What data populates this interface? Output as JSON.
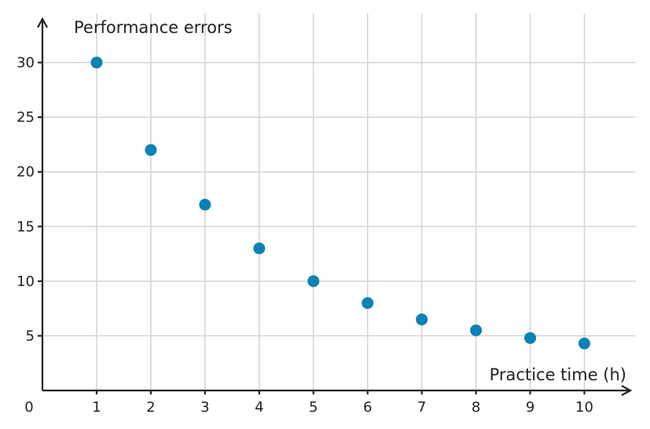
{
  "chart_data": {
    "type": "scatter",
    "xlabel": "Practice time (h)",
    "ylabel": "Performance errors",
    "origin_label": "0",
    "xlim": [
      0,
      10.95
    ],
    "ylim": [
      0,
      34.5
    ],
    "x_ticks": [
      1,
      2,
      3,
      4,
      5,
      6,
      7,
      8,
      9,
      10
    ],
    "y_ticks": [
      5,
      10,
      15,
      20,
      25,
      30
    ],
    "grid": true,
    "point_color": "#0a82b4",
    "points": [
      {
        "x": 1,
        "y": 30
      },
      {
        "x": 2,
        "y": 22
      },
      {
        "x": 3,
        "y": 17
      },
      {
        "x": 4,
        "y": 13
      },
      {
        "x": 5,
        "y": 10
      },
      {
        "x": 6,
        "y": 8
      },
      {
        "x": 7,
        "y": 6.5
      },
      {
        "x": 8,
        "y": 5.5
      },
      {
        "x": 9,
        "y": 4.8
      },
      {
        "x": 10,
        "y": 4.3
      }
    ]
  }
}
